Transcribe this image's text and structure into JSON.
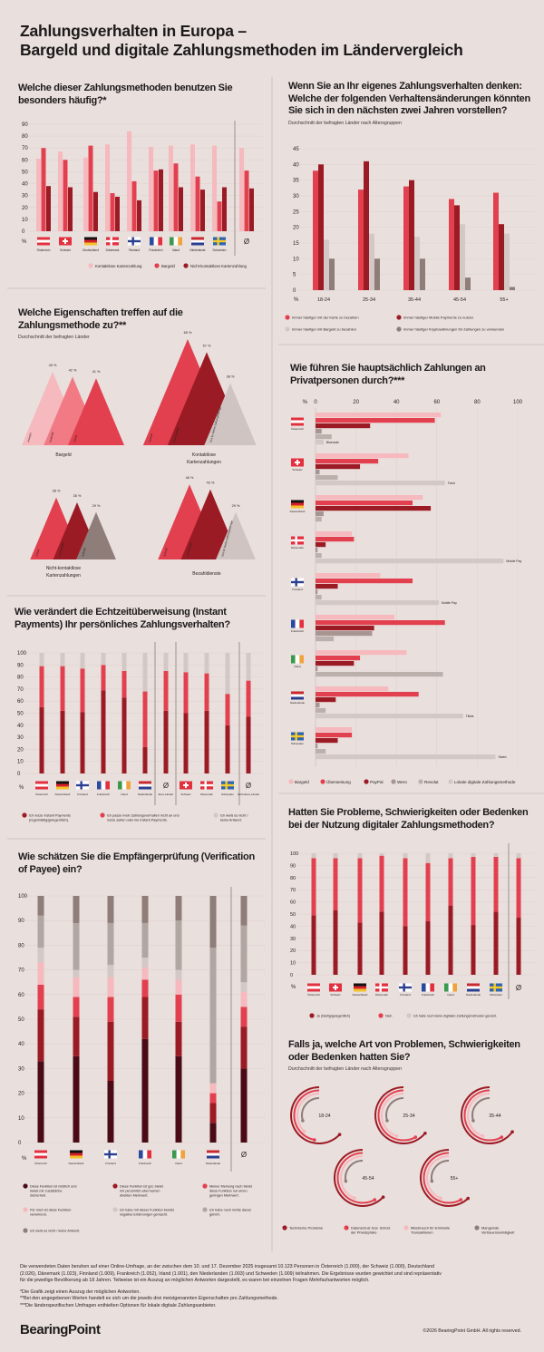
{
  "header": {
    "title_line1": "Zahlungsverhalten in Europa –",
    "title_line2": "Bargeld und digitale Zahlungsmethoden im Ländervergleich"
  },
  "colors": {
    "background": "#e9dfdd",
    "pink": "#f6b9be",
    "light_red": "#f17a84",
    "red": "#e2404f",
    "dark_red": "#9b1b24",
    "burgundy": "#4a0b16",
    "light_gray": "#cfc4c2",
    "gray": "#b2a6a3",
    "taupe": "#8e7d78"
  },
  "countries": {
    "AT": {
      "name": "Österreich",
      "flag": "austria-flag"
    },
    "CH": {
      "name": "Schweiz",
      "flag": "switzerland-flag"
    },
    "DE": {
      "name": "Deutschland",
      "flag": "germany-flag"
    },
    "DK": {
      "name": "Dänemark",
      "flag": "denmark-flag"
    },
    "FI": {
      "name": "Finnland",
      "flag": "finland-flag"
    },
    "FR": {
      "name": "Frankreich",
      "flag": "france-flag"
    },
    "IE": {
      "name": "Irland",
      "flag": "ireland-flag"
    },
    "NL": {
      "name": "Niederlande",
      "flag": "netherlands-flag"
    },
    "SE": {
      "name": "Schweden",
      "flag": "sweden-flag"
    }
  },
  "average_symbol": "Ø",
  "percent_symbol": "%",
  "chart_data": [
    {
      "id": "methods",
      "type": "bar",
      "title": "Welche dieser Zahlungsmethoden benutzen Sie besonders häufig?*",
      "categories": [
        "AT",
        "CH",
        "DE",
        "DK",
        "FI",
        "FR",
        "IE",
        "NL",
        "SE",
        "Ø"
      ],
      "ylim": [
        0,
        90
      ],
      "yticks": [
        0,
        10,
        20,
        30,
        40,
        50,
        60,
        70,
        80,
        90
      ],
      "grid": true,
      "legend": "bottom",
      "series": [
        {
          "name": "Kontaktlose Kartenzahlung",
          "color": "#f6b9be",
          "values": [
            61,
            67,
            62,
            73,
            84,
            71,
            72,
            73,
            72,
            70
          ]
        },
        {
          "name": "Bargeld",
          "color": "#e2404f",
          "values": [
            70,
            60,
            72,
            32,
            42,
            51,
            57,
            46,
            25,
            51
          ]
        },
        {
          "name": "Nicht-kontaktlose Kartenzahlung",
          "color": "#9b1b24",
          "values": [
            38,
            37,
            33,
            29,
            26,
            52,
            37,
            35,
            37,
            36
          ]
        }
      ]
    },
    {
      "id": "changes",
      "type": "bar",
      "title": "Wenn Sie an Ihr eigenes Zahlungsverhalten denken: Welche der folgenden Verhaltensänderungen könnten Sie sich in den nächsten zwei Jahren vorstellen?",
      "subtitle": "Durchschnitt der befragten Länder nach Altersgruppen",
      "categories": [
        "18-24",
        "25-34",
        "35-44",
        "45-54",
        "55+"
      ],
      "ylim": [
        0,
        45
      ],
      "yticks": [
        0,
        5,
        10,
        15,
        20,
        25,
        30,
        35,
        40,
        45
      ],
      "grid": true,
      "legend": "bottom",
      "series": [
        {
          "name": "Immer häufiger mit der Karte zu bezahlen",
          "color": "#e2404f",
          "values": [
            38,
            32,
            33,
            29,
            31
          ]
        },
        {
          "name": "Immer häufiger Mobile Payments zu nutzen",
          "color": "#9b1b24",
          "values": [
            40,
            41,
            35,
            27,
            21
          ]
        },
        {
          "name": "Immer häufiger mit Bargeld zu bezahlen",
          "color": "#d3c8c6",
          "values": [
            16,
            18,
            17,
            21,
            18
          ]
        },
        {
          "name": "Immer häufiger Kryptowährungen für Zahlungen zu verwenden",
          "color": "#8e7d78",
          "values": [
            10,
            10,
            10,
            4,
            1
          ]
        }
      ]
    },
    {
      "id": "properties",
      "type": "bar",
      "title": "Welche Eigenschaften treffen auf die Zahlungsmethode zu?**",
      "subtitle": "Durchschnitt der befragten Länder",
      "unit": "%",
      "groups": [
        {
          "name": "Bargeld",
          "items": [
            {
              "label": "Anonym",
              "value": 45,
              "color": "#f6b9be"
            },
            {
              "label": "Kontrolle",
              "value": 42,
              "color": "#f17a84"
            },
            {
              "label": "Sicher",
              "value": 41,
              "color": "#e2404f"
            }
          ]
        },
        {
          "name": "Kontaktlose Kartenzahlungen",
          "items": [
            {
              "label": "Schnell",
              "value": 65,
              "color": "#e2404f"
            },
            {
              "label": "Komfortabel",
              "value": 57,
              "color": "#9b1b24"
            },
            {
              "label": "Gut für kleine Zahlungsbeträge",
              "value": 38,
              "color": "#cfc4c2"
            }
          ]
        },
        {
          "name": "Nicht-kontaktlose Kartenzahlungen",
          "items": [
            {
              "label": "Sicher",
              "value": 38,
              "color": "#e2404f"
            },
            {
              "label": "Komfortabel",
              "value": 35,
              "color": "#9b1b24"
            },
            {
              "label": "Schnell",
              "value": 29,
              "color": "#8e7d78"
            }
          ]
        },
        {
          "name": "Bezahldienste",
          "items": [
            {
              "label": "Schnell",
              "value": 46,
              "color": "#e2404f"
            },
            {
              "label": "Komfortabel",
              "value": 43,
              "color": "#9b1b24"
            },
            {
              "label": "Gut für kleine Zahlungsbeträge",
              "value": 29,
              "color": "#cfc4c2"
            }
          ]
        }
      ]
    },
    {
      "id": "p2p",
      "type": "bar",
      "orientation": "horizontal",
      "title": "Wie führen Sie hauptsächlich Zahlungen an Privatpersonen durch?***",
      "xlim": [
        0,
        100
      ],
      "xticks": [
        0,
        20,
        40,
        60,
        80,
        100
      ],
      "grid": true,
      "legend": "bottom",
      "series_names": [
        "Bargeld",
        "Überweisung",
        "PayPal",
        "Wero",
        "Revolut",
        "Lokale digitale Zahlungsmethode"
      ],
      "series_colors": [
        "#f6b9be",
        "#e2404f",
        "#9b1b24",
        "#a69591",
        "#bcb0ad",
        "#d3c8c6"
      ],
      "rows": [
        {
          "country": "AT",
          "values": [
            62,
            59,
            27,
            3,
            8,
            4
          ],
          "local_label": "Bluecode"
        },
        {
          "country": "CH",
          "values": [
            46,
            31,
            22,
            2,
            11,
            64
          ],
          "local_label": "Twint"
        },
        {
          "country": "DE",
          "values": [
            53,
            48,
            57,
            4,
            3,
            null
          ],
          "local_label": ""
        },
        {
          "country": "DK",
          "values": [
            18,
            19,
            5,
            1,
            3,
            93
          ],
          "local_label": "Mobile Pay"
        },
        {
          "country": "FI",
          "values": [
            32,
            48,
            11,
            1,
            3,
            61
          ],
          "local_label": "Mobile Pay"
        },
        {
          "country": "FR",
          "values": [
            39,
            64,
            29,
            28,
            9,
            null
          ],
          "local_label": ""
        },
        {
          "country": "IE",
          "values": [
            45,
            22,
            19,
            1,
            63,
            null
          ],
          "local_label": ""
        },
        {
          "country": "NL",
          "values": [
            36,
            51,
            10,
            2,
            5,
            73
          ],
          "local_label": "Tikkie"
        },
        {
          "country": "SE",
          "values": [
            18,
            18,
            11,
            1,
            5,
            89
          ],
          "local_label": "Swish"
        }
      ]
    },
    {
      "id": "instant",
      "type": "bar",
      "stacked": true,
      "title": "Wie verändert die Echtzeitüberweisung (Instant Payments) Ihr persönliches Zahlungsverhalten?",
      "ylim": [
        0,
        100
      ],
      "yticks": [
        0,
        10,
        20,
        30,
        40,
        50,
        60,
        70,
        80,
        90,
        100
      ],
      "grid": true,
      "legend": "bottom",
      "categories": [
        "AT",
        "DE",
        "FI",
        "FR",
        "IE",
        "NL",
        "Ø Euro-Länder",
        "CH",
        "DK",
        "SE",
        "Ø Nicht-Euro-Länder"
      ],
      "series": [
        {
          "name": "Ich nutze Instant Payments (regelmäßig/gelegentlich).",
          "color": "#9b1b24",
          "values": [
            55,
            52,
            51,
            69,
            63,
            22,
            52,
            50,
            52,
            40,
            47
          ]
        },
        {
          "name": "Ich passe mein Zahlungsverhalten nicht an und nutze selten oder nie Instant Payments.",
          "color": "#e2404f",
          "values": [
            34,
            37,
            36,
            21,
            22,
            46,
            33,
            34,
            31,
            26,
            30
          ]
        },
        {
          "name": "Ich weiß es nicht / keine Antwort.",
          "color": "#d3c8c6",
          "values": [
            11,
            11,
            13,
            10,
            15,
            32,
            15,
            16,
            17,
            34,
            23
          ]
        }
      ]
    },
    {
      "id": "vop",
      "type": "bar",
      "stacked": true,
      "title": "Wie schätzen Sie die Empfängerprüfung (Verification of Payee) ein?",
      "ylim": [
        0,
        100
      ],
      "yticks": [
        0,
        10,
        20,
        30,
        40,
        50,
        60,
        70,
        80,
        90,
        100
      ],
      "grid": true,
      "legend": "bottom",
      "categories": [
        "AT",
        "DE",
        "FI",
        "FR",
        "IE",
        "NL",
        "Ø"
      ],
      "series": [
        {
          "name": "Diese Funktion ist nützlich und bietet mir zusätzliche Sicherheit.",
          "color": "#4a0b16",
          "values": [
            33,
            35,
            25,
            42,
            35,
            8,
            30
          ]
        },
        {
          "name": "Diese Funktion ist gut, bietet mir persönlich aber keinen direkten Mehrwert.",
          "color": "#9b1b24",
          "values": [
            21,
            16,
            24,
            17,
            14,
            8,
            17
          ]
        },
        {
          "name": "Meiner Meinung nach bietet diese Funktion nur einen geringen Mehrwert.",
          "color": "#e2404f",
          "values": [
            10,
            8,
            10,
            7,
            11,
            4,
            8
          ]
        },
        {
          "name": "Für mich ist diese Funktion verwirrend.",
          "color": "#f6b9be",
          "values": [
            9,
            8,
            8,
            5,
            6,
            4,
            6
          ]
        },
        {
          "name": "Ich habe mit dieser Funktion bereits negative Erfahrungen gemacht.",
          "color": "#d3c8c6",
          "values": [
            6,
            3,
            5,
            4,
            4,
            0,
            4
          ]
        },
        {
          "name": "Ich habe noch nichts davon gehört.",
          "color": "#b2a6a3",
          "values": [
            13,
            19,
            17,
            14,
            20,
            55,
            23
          ]
        },
        {
          "name": "Ich weiß es nicht / keine Antwort.",
          "color": "#8e7d78",
          "values": [
            8,
            11,
            11,
            11,
            10,
            21,
            12
          ]
        }
      ]
    },
    {
      "id": "problems",
      "type": "bar",
      "stacked": true,
      "title": "Hatten Sie Probleme, Schwierigkeiten oder Bedenken bei der Nutzung digitaler Zahlungsmethoden?",
      "ylim": [
        0,
        100
      ],
      "yticks": [
        0,
        10,
        20,
        30,
        40,
        50,
        60,
        70,
        80,
        90,
        100
      ],
      "grid": true,
      "legend": "bottom",
      "categories": [
        "AT",
        "CH",
        "DE",
        "DK",
        "FI",
        "FR",
        "IE",
        "NL",
        "SE",
        "Ø"
      ],
      "series": [
        {
          "name": "Ja (häufig/gelegentlich)",
          "color": "#9b1b24",
          "values": [
            49,
            53,
            43,
            52,
            40,
            44,
            57,
            41,
            52,
            47
          ]
        },
        {
          "name": "Nein",
          "color": "#e2404f",
          "values": [
            47,
            43,
            53,
            46,
            56,
            48,
            39,
            56,
            45,
            49
          ]
        },
        {
          "name": "Ich habe noch keine digitalen Zahlungsmethoden genutzt.",
          "color": "#d3c8c6",
          "values": [
            4,
            4,
            4,
            2,
            4,
            8,
            4,
            3,
            3,
            4
          ]
        }
      ]
    },
    {
      "id": "problem_types",
      "type": "pie",
      "title": "Falls ja, welche Art von Problemen, Schwierigkeiten oder Bedenken hatten Sie?",
      "subtitle": "Durchschnitt der befragten Länder nach Altersgruppen",
      "categories": [
        "18-24",
        "25-34",
        "35-44",
        "45-54",
        "55+"
      ],
      "legend": "bottom",
      "series": [
        {
          "name": "Technische Probleme",
          "color": "#9b1b24",
          "values": [
            63,
            64,
            65,
            63,
            62
          ]
        },
        {
          "name": "Datenschutz bzw. Schutz der Privatsphäre",
          "color": "#e2404f",
          "values": [
            47,
            58,
            58,
            58,
            58
          ]
        },
        {
          "name": "Missbrauch für kriminelle Transaktionen",
          "color": "#f6b9be",
          "values": [
            38,
            45,
            45,
            44,
            44
          ]
        },
        {
          "name": "Mangelnde Vertrauenswürdigkeit",
          "color": "#8e7d78",
          "values": [
            30,
            30,
            30,
            28,
            28
          ]
        }
      ]
    }
  ],
  "footer": {
    "method_note": "Die verwendeten Daten beruhen auf einer Online-Umfrage, an der zwischen dem 10. und 17. Dezember 2025 insgesamt 10.123 Personen in Österreich (1.000), der Schweiz (1.000), Deutschland (2.026), Dänemark (1.023), Finnland (1.009), Frankreich (1.052), Irland (1.001), den Niederlanden (1.003) und Schweden (1.009) teilnahmen. Die Ergebnisse wurden gewichtet und sind repräsentativ für die jeweilige Bevölkerung ab 18 Jahren. Teilweise ist ein Auszug an möglichen Antworten dargestellt, es waren bei einzelnen Fragen Mehrfachantworten möglich.",
    "note1": "*Die Grafik zeigt einen Auszug der möglichen Antworten.",
    "note2": "**Bei den angegebenen Werten handelt es sich um die jeweils drei meistgenannten Eigenschaften pro Zahlungsmethode.",
    "note3": "***Die länderspezifischen Umfragen enthielten Optionen für lokale digitale Zahlungsanbieter.",
    "logo": "BearingPoint",
    "copyright": "©2026 BearingPoint GmbH. All rights reserved."
  }
}
